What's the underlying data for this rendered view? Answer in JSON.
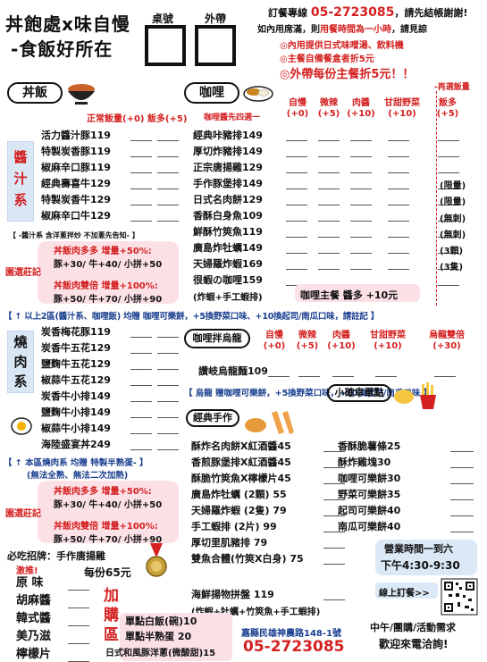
{
  "header": {
    "title_line1": "丼飽處x味自慢",
    "title_line2": "-食飯好所在",
    "table_no_label": "桌號",
    "takeout_label": "外帶",
    "order_line_prefix": "訂餐專線",
    "order_phone": "05-2723085",
    "order_line_suffix": "，請先結帳謝謝!",
    "dinein_prefix": "如內用席滿，則",
    "dinein_highlight": "用餐時間為一小時",
    "dinein_suffix": "，請見諒",
    "notes": [
      "◎內用提供日式味噌湯、飲料機",
      "◎主餐自備餐盒者折5元",
      "◎外帶每份主餐折5元！！"
    ]
  },
  "donburi": {
    "badge": "丼飯",
    "size_header": "正常飯量(+0)  飯多(+5)",
    "side_label": [
      "醬",
      "汁",
      "系"
    ],
    "items": [
      "活力醬汁豚119",
      "特製炭香豚119",
      "椒麻辛口豚119",
      "經典壽喜牛129",
      "特製炭香牛129",
      "椒麻辛口牛129"
    ],
    "note": "【 -醬汁系 含洋蔥拌炒 不加蔥先告知- 】",
    "extra_tag": "園選莊記",
    "bonus1_title": "丼飯肉多多 增量+50%:",
    "bonus1_detail": "豚+30/ 牛+40/ 小拼+50",
    "bonus2_title": "丼飯肉雙倍 增量+100%:",
    "bonus2_detail": "豚+50/ 牛+70/ 小拼+90"
  },
  "curry": {
    "badge": "咖哩",
    "sauce_header": "咖哩醬先四選一",
    "columns": [
      {
        "name": "自慢",
        "price": "(+0)"
      },
      {
        "name": "微辣",
        "price": "(+5)"
      },
      {
        "name": "肉醬",
        "price": "(+10)"
      },
      {
        "name": "甘甜野菜",
        "price": "(+10)"
      }
    ],
    "rice_option_tag": "-再選飯量",
    "rice_more": "飯多",
    "rice_more_price": "(+5)",
    "items": [
      "經典咔豬排149",
      "厚切炸豬排149",
      "正宗唐揚雞129",
      "手作豚堡排149",
      "日式名肉餅129",
      "香酥白身魚109",
      "鮮酥竹筴魚119",
      "廣島炸牡蠣149",
      "天婦羅炸蝦169",
      "很蝦の咖哩159"
    ],
    "limit_labels": [
      "(限量)",
      "(限量)",
      "(無刺)",
      "(無刺)",
      "(3顆)",
      "(3隻)"
    ],
    "shrimp_note": "(炸蝦+手工蝦排)",
    "curry_main": "咖哩主餐 醬多 +10元"
  },
  "combo_notice": "【 ↑ 以上2區(醬汁系、咖哩飯) 均贈 咖哩可樂餅，+5換野菜口味、+10換起司/南瓜口味，請註記 】",
  "grill": {
    "side_label": [
      "燒",
      "肉",
      "系"
    ],
    "items": [
      "炭香梅花豚119",
      "炭香牛五花129",
      "鹽麴牛五花129",
      "椒蒜牛五花129",
      "炭香牛小排149",
      "鹽麴牛小排149",
      "椒蒜牛小排149",
      "海陸盛宴丼249"
    ],
    "note": "【 ↑ 本區燒肉系 均贈 特製半熟蛋- 】",
    "note_sub": "(無法全熟、無法二次加熱)",
    "extra_tag": "園選莊記",
    "bonus1_title": "丼飯肉多多 增量+50%:",
    "bonus1_detail": "豚+30/ 牛+40/ 小拼+50",
    "bonus2_title": "丼飯肉雙倍 增量+100%:",
    "bonus2_detail": "豚+50/ 牛+70/ 小拼+90"
  },
  "udon": {
    "badge": "咖哩拌烏龍",
    "columns": [
      {
        "name": "自慢",
        "price": "(+0)"
      },
      {
        "name": "微辣",
        "price": "(+5)"
      },
      {
        "name": "肉醬",
        "price": "(+10)"
      },
      {
        "name": "甘甜野菜",
        "price": "(+10)"
      },
      {
        "name": "烏龍雙倍",
        "price": "(+30)"
      }
    ],
    "item": "讚岐烏龍麵109",
    "note": "【 烏龍 贈咖哩可樂餅，+5換野菜口味，+10換起司/南瓜口味 】"
  },
  "classic": {
    "badge": "經典手作",
    "items": [
      "酥炸名肉餅X紅酒醬45",
      "香煎豚堡排X紅酒醬45",
      "酥脆竹筴魚X檸檬片45",
      "廣島炸牡蠣 (2顆)  55",
      "天婦羅炸蝦 (2隻)  79",
      "手工蝦排   (2片)  99",
      "厚切里肌豬排       79",
      "雙魚合體(竹筴X白身)  75"
    ],
    "platter": "海鮮揚物拼盤    119",
    "platter_detail": "(炸蝦+牡蠣+竹筴魚+手工蝦排)"
  },
  "snack": {
    "badge": "小確幸單點",
    "items": [
      "香酥脆薯條25",
      "酥炸雞塊30",
      "咖哩可樂餅30",
      "野菜可樂餅35",
      "起司可樂餅40",
      "南瓜可樂餅40"
    ]
  },
  "sauce": {
    "title": "必吃招牌：手作唐揚雞",
    "tag": "激推!",
    "price": "每份65元",
    "items": [
      "原 味",
      "胡麻醬",
      "韓式醬",
      "美乃滋",
      "檸檬片"
    ]
  },
  "addon": {
    "label": [
      "加",
      "購",
      "區"
    ],
    "items": [
      "單點白飯(碗)10",
      "單點半熟蛋  20",
      "日式和風豚洋蔥(微酸甜)15"
    ]
  },
  "footer": {
    "address": "嘉縣民雄神農路148-1號",
    "phone": "05-2723085",
    "hours_title": "營業時間一到六",
    "hours": "下午4:30-9:30",
    "online": "線上訂餐>>",
    "catering": "中午/團購/活動需求",
    "welcome": "歡迎來電洽詢!"
  },
  "colors": {
    "accent": "#d42020",
    "blue": "#1a3f8f",
    "pink": "#fbe0e6",
    "band": "#d9e6f4"
  }
}
